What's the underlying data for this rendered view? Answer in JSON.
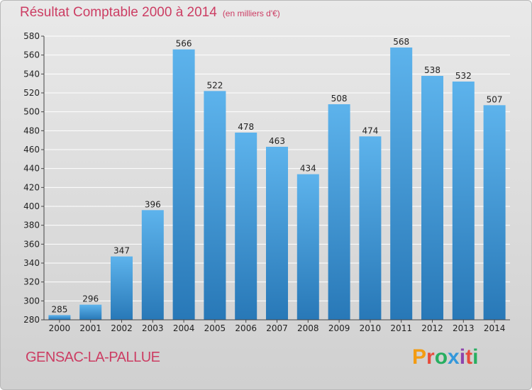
{
  "header": {
    "title": "Résultat Comptable 2000 à 2014",
    "unit": "(en milliers d'€)"
  },
  "footer": {
    "city": "GENSAC-LA-PALLUE",
    "logo": "Proxiti",
    "logo_colors": [
      "#f39c12",
      "#e74c3c",
      "#27ae60",
      "#3498db",
      "#8e44ad",
      "#e74c3c",
      "#27ae60"
    ]
  },
  "colors": {
    "title": "#cc3d63",
    "bar_top": "#5db3ec",
    "bar_bottom": "#2878b7",
    "grid": "#ffffff"
  },
  "chart_data": {
    "type": "bar",
    "title": "Résultat Comptable 2000 à 2014",
    "xlabel": "",
    "ylabel": "(en milliers d'€)",
    "categories": [
      "2000",
      "2001",
      "2002",
      "2003",
      "2004",
      "2005",
      "2006",
      "2007",
      "2008",
      "2009",
      "2010",
      "2011",
      "2012",
      "2013",
      "2014"
    ],
    "values": [
      285,
      296,
      347,
      396,
      566,
      522,
      478,
      463,
      434,
      508,
      474,
      568,
      538,
      532,
      507
    ],
    "ylim": [
      280,
      580
    ],
    "yticks": [
      280,
      300,
      320,
      340,
      360,
      380,
      400,
      420,
      440,
      460,
      480,
      500,
      520,
      540,
      560,
      580
    ],
    "grid": true
  }
}
